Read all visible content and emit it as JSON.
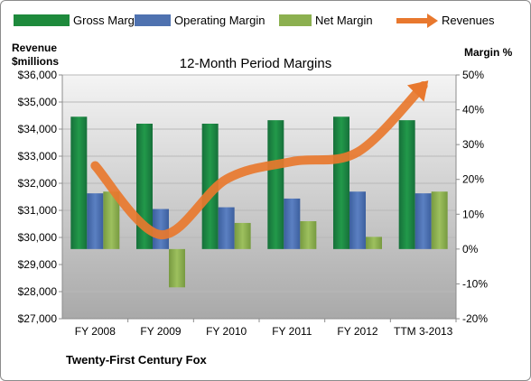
{
  "chart_data": {
    "type": "bar",
    "title": "12-Month Period Margins",
    "company": "Twenty-First Century Fox",
    "left_axis": {
      "label_line1": "Revenue",
      "label_line2": "$millions",
      "min": 27000,
      "max": 36000,
      "step": 1000,
      "ticks": [
        "$27,000",
        "$28,000",
        "$29,000",
        "$30,000",
        "$31,000",
        "$32,000",
        "$33,000",
        "$34,000",
        "$35,000",
        "$36,000"
      ]
    },
    "right_axis": {
      "label": "Margin %",
      "min": -20,
      "max": 50,
      "step": 10,
      "ticks": [
        "-20%",
        "-10%",
        "0%",
        "10%",
        "20%",
        "30%",
        "40%",
        "50%"
      ]
    },
    "categories": [
      "FY 2008",
      "FY 2009",
      "FY 2010",
      "FY 2011",
      "FY 2012",
      "TTM 3-2013"
    ],
    "series": [
      {
        "name": "Gross Margin",
        "axis": "right",
        "color": "#1e8a3c",
        "values": [
          38,
          36,
          36,
          37,
          38,
          37
        ]
      },
      {
        "name": "Operating Margin",
        "axis": "right",
        "color": "#4f72b0",
        "values": [
          16,
          11.5,
          12,
          14.5,
          16.5,
          16
        ]
      },
      {
        "name": "Net Margin",
        "axis": "right",
        "color": "#8cb050",
        "values": [
          16.5,
          -11,
          7.5,
          8,
          3.5,
          16.5
        ]
      }
    ],
    "line_series": {
      "name": "Revenues",
      "axis": "left",
      "color": "#e8782e",
      "values": [
        32650,
        30100,
        32150,
        32800,
        33150,
        35600
      ]
    },
    "legend_position": "top",
    "grid": true
  }
}
